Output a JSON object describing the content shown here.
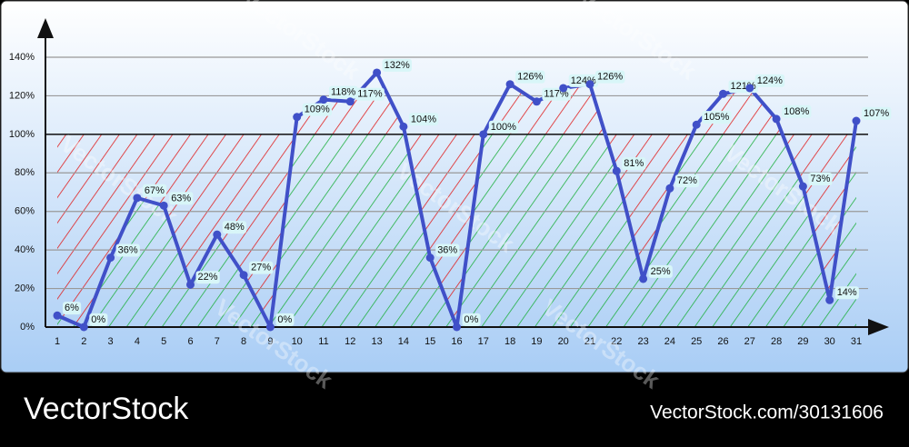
{
  "chart_data": {
    "type": "line",
    "categories": [
      "1",
      "2",
      "3",
      "4",
      "5",
      "6",
      "7",
      "8",
      "9",
      "10",
      "11",
      "12",
      "13",
      "14",
      "15",
      "16",
      "17",
      "18",
      "19",
      "20",
      "21",
      "22",
      "23",
      "24",
      "25",
      "26",
      "27",
      "28",
      "29",
      "30",
      "31"
    ],
    "values": [
      6,
      0,
      36,
      67,
      63,
      22,
      48,
      27,
      0,
      109,
      118,
      117,
      132,
      104,
      36,
      0,
      100,
      126,
      117,
      124,
      126,
      81,
      25,
      72,
      105,
      121,
      124,
      108,
      73,
      14,
      107
    ],
    "value_labels": [
      "6%",
      "0%",
      "36%",
      "67%",
      "63%",
      "22%",
      "48%",
      "27%",
      "0%",
      "109%",
      "118%",
      "117%",
      "132%",
      "104%",
      "36%",
      "0%",
      "100%",
      "126%",
      "117%",
      "124%",
      "126%",
      "81%",
      "25%",
      "72%",
      "105%",
      "121%",
      "124%",
      "108%",
      "73%",
      "14%",
      "107%"
    ],
    "color": "#4050c8",
    "ylim": [
      0,
      140
    ],
    "yticks": [
      {
        "value": 0,
        "label": "0%"
      },
      {
        "value": 20,
        "label": "20%"
      },
      {
        "value": 40,
        "label": "40%"
      },
      {
        "value": 60,
        "label": "60%"
      },
      {
        "value": 80,
        "label": "80%"
      },
      {
        "value": 100,
        "label": "100%"
      },
      {
        "value": 120,
        "label": "120%"
      },
      {
        "value": 140,
        "label": "140%"
      }
    ],
    "reference_line": 100,
    "grid": true
  },
  "watermark": "VectorStock",
  "footer": {
    "brand": "VectorStock",
    "id": "VectorStock.com/30131606"
  }
}
